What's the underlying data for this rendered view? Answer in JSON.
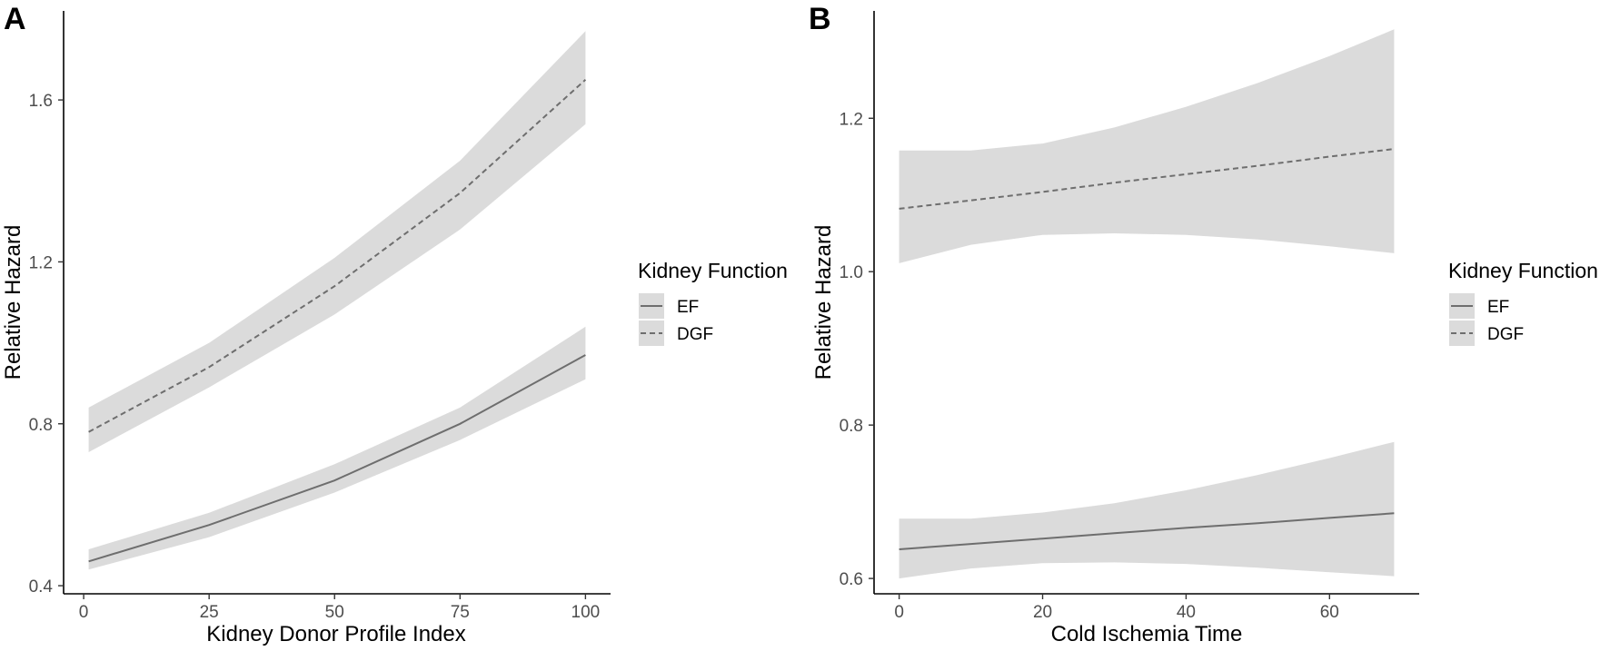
{
  "figure": {
    "panels": [
      {
        "letter": "A"
      },
      {
        "letter": "B"
      }
    ]
  },
  "colors": {
    "ribbon": "#dbdbdb",
    "line": "#6e6e6e",
    "axis": "#000000",
    "tick_text": "#4d4d4d"
  },
  "chart_data": [
    {
      "type": "line",
      "panel": "A",
      "title": "",
      "xlabel": "Kidney Donor Profile Index",
      "ylabel": "Relative Hazard",
      "xlim": [
        -4,
        105
      ],
      "ylim": [
        0.38,
        1.82
      ],
      "xticks": [
        0,
        25,
        50,
        75,
        100
      ],
      "xtick_labels": [
        "0",
        "25",
        "50",
        "75",
        "100"
      ],
      "yticks": [
        0.4,
        0.8,
        1.2,
        1.6
      ],
      "ytick_labels": [
        "0.4",
        "0.8",
        "1.2",
        "1.6"
      ],
      "legend": {
        "title": "Kidney Function",
        "position": "right"
      },
      "series": [
        {
          "name": "EF",
          "linestyle": "solid",
          "x": [
            1,
            25,
            50,
            75,
            100
          ],
          "y": [
            0.46,
            0.55,
            0.66,
            0.8,
            0.97
          ],
          "lower": [
            0.44,
            0.52,
            0.63,
            0.76,
            0.91
          ],
          "upper": [
            0.49,
            0.58,
            0.7,
            0.84,
            1.04
          ]
        },
        {
          "name": "DGF",
          "linestyle": "dashed",
          "x": [
            1,
            25,
            50,
            75,
            100
          ],
          "y": [
            0.78,
            0.94,
            1.14,
            1.37,
            1.65
          ],
          "lower": [
            0.73,
            0.89,
            1.07,
            1.28,
            1.54
          ],
          "upper": [
            0.84,
            1.0,
            1.21,
            1.45,
            1.77
          ]
        }
      ]
    },
    {
      "type": "line",
      "panel": "B",
      "title": "",
      "xlabel": "Cold Ischemia Time",
      "ylabel": "Relative Hazard",
      "xlim": [
        -3.5,
        72.5
      ],
      "ylim": [
        0.58,
        1.34
      ],
      "xticks": [
        0,
        20,
        40,
        60
      ],
      "xtick_labels": [
        "0",
        "20",
        "40",
        "60"
      ],
      "yticks": [
        0.6,
        0.8,
        1.0,
        1.2
      ],
      "ytick_labels": [
        "0.6",
        "0.8",
        "1.0",
        "1.2"
      ],
      "legend": {
        "title": "Kidney Function",
        "position": "right"
      },
      "series": [
        {
          "name": "EF",
          "linestyle": "solid",
          "x": [
            0,
            10,
            20,
            30,
            40,
            50,
            60,
            69
          ],
          "y": [
            0.638,
            0.645,
            0.652,
            0.659,
            0.666,
            0.672,
            0.679,
            0.685
          ],
          "lower": [
            0.6,
            0.613,
            0.62,
            0.621,
            0.619,
            0.614,
            0.608,
            0.603
          ],
          "upper": [
            0.678,
            0.678,
            0.686,
            0.698,
            0.715,
            0.735,
            0.757,
            0.778
          ]
        },
        {
          "name": "DGF",
          "linestyle": "dashed",
          "x": [
            0,
            10,
            20,
            30,
            40,
            50,
            60,
            69
          ],
          "y": [
            1.082,
            1.093,
            1.104,
            1.116,
            1.127,
            1.138,
            1.15,
            1.16
          ],
          "lower": [
            1.011,
            1.035,
            1.048,
            1.05,
            1.048,
            1.042,
            1.033,
            1.024
          ],
          "upper": [
            1.158,
            1.158,
            1.167,
            1.188,
            1.215,
            1.246,
            1.281,
            1.316
          ]
        }
      ]
    }
  ]
}
